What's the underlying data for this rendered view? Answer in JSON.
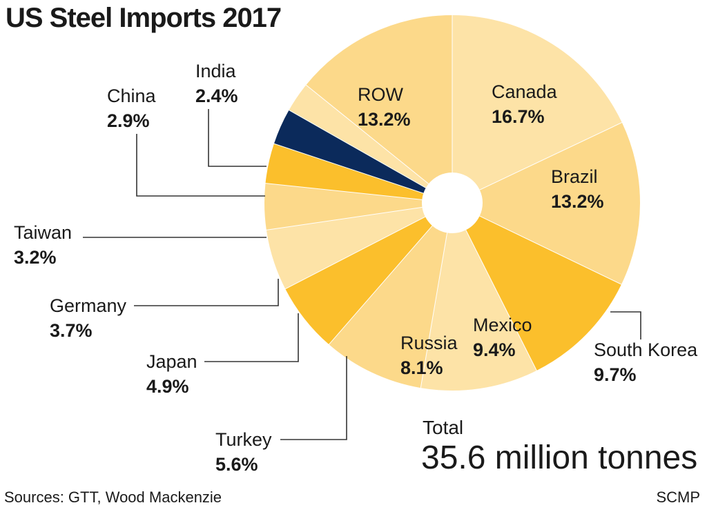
{
  "chart_data": {
    "type": "pie",
    "title": "US Steel Imports 2017",
    "categories": [
      "Canada",
      "Brazil",
      "South Korea",
      "Mexico",
      "Russia",
      "Turkey",
      "Japan",
      "Germany",
      "Taiwan",
      "China",
      "India",
      "ROW"
    ],
    "values": [
      16.7,
      13.2,
      9.7,
      9.4,
      8.1,
      5.6,
      4.9,
      3.7,
      3.2,
      2.9,
      2.4,
      13.2
    ],
    "value_labels": [
      "16.7%",
      "13.2%",
      "9.7%",
      "9.4%",
      "8.1%",
      "5.6%",
      "4.9%",
      "3.7%",
      "3.2%",
      "2.9%",
      "2.4%",
      "13.2%"
    ],
    "colors": [
      "#fde3a7",
      "#fcd98a",
      "#fbbf2c",
      "#fde3a7",
      "#fcd98a",
      "#fbbf2c",
      "#fde3a7",
      "#fcd98a",
      "#fbbf2c",
      "#0b2a5b",
      "#fde3a7",
      "#fcd98a"
    ],
    "total_label": "Total",
    "total_value": "35.6 million tonnes"
  },
  "source": "Sources: GTT, Wood Mackenzie",
  "credit": "SCMP"
}
